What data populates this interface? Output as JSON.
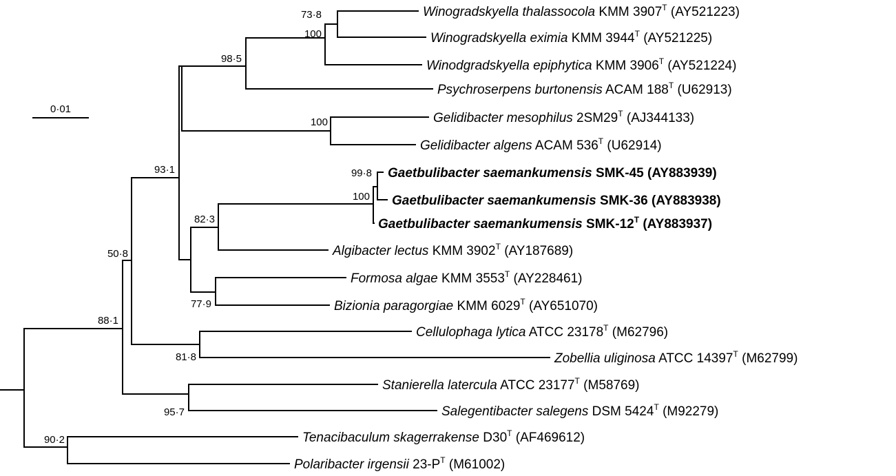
{
  "scale_bar": {
    "label": "0·01"
  },
  "taxa": [
    {
      "genus_species": "Winogradskyella thalassocola",
      "strain": "KMM 3907",
      "type_mark": "T",
      "accession": "(AY521223)",
      "bold": false
    },
    {
      "genus_species": "Winogradskyella eximia",
      "strain": "KMM 3944",
      "type_mark": "T",
      "accession": "(AY521225)",
      "bold": false
    },
    {
      "genus_species": "Winodgradskyella epiphytica",
      "strain": "KMM 3906",
      "type_mark": "T",
      "accession": "(AY521224)",
      "bold": false
    },
    {
      "genus_species": "Psychroserpens burtonensis",
      "strain": "ACAM 188",
      "type_mark": "T",
      "accession": "(U62913)",
      "bold": false
    },
    {
      "genus_species": "Gelidibacter mesophilus",
      "strain": "2SM29",
      "type_mark": "T",
      "accession": "(AJ344133)",
      "bold": false
    },
    {
      "genus_species": "Gelidibacter algens",
      "strain": "ACAM 536",
      "type_mark": "T",
      "accession": "(U62914)",
      "bold": false
    },
    {
      "genus_species": "Gaetbulibacter saemankumensis",
      "strain": "SMK-45",
      "type_mark": "",
      "accession": "(AY883939)",
      "bold": true
    },
    {
      "genus_species": "Gaetbulibacter saemankumensis",
      "strain": "SMK-36",
      "type_mark": "",
      "accession": "(AY883938)",
      "bold": true
    },
    {
      "genus_species": "Gaetbulibacter saemankumensis",
      "strain": "SMK-12",
      "type_mark": "T",
      "accession": "(AY883937)",
      "bold": true
    },
    {
      "genus_species": "Algibacter lectus",
      "strain": "KMM 3902",
      "type_mark": "T",
      "accession": "(AY187689)",
      "bold": false
    },
    {
      "genus_species": "Formosa algae",
      "strain": "KMM 3553",
      "type_mark": "T",
      "accession": "(AY228461)",
      "bold": false
    },
    {
      "genus_species": "Bizionia paragorgiae",
      "strain": "KMM 6029",
      "type_mark": "T",
      "accession": "(AY651070)",
      "bold": false
    },
    {
      "genus_species": "Cellulophaga lytica",
      "strain": "ATCC 23178",
      "type_mark": "T",
      "accession": "(M62796)",
      "bold": false
    },
    {
      "genus_species": "Zobellia uliginosa",
      "strain": "ATCC 14397",
      "type_mark": "T",
      "accession": "(M62799)",
      "bold": false
    },
    {
      "genus_species": "Stanierella latercula",
      "strain": "ATCC 23177",
      "type_mark": "T",
      "accession": "(M58769)",
      "bold": false
    },
    {
      "genus_species": "Salegentibacter salegens",
      "strain": "DSM 5424",
      "type_mark": "T",
      "accession": "(M92279)",
      "bold": false
    },
    {
      "genus_species": "Tenacibaculum skagerrakense",
      "strain": "D30",
      "type_mark": "T",
      "accession": "(AF469612)",
      "bold": false
    },
    {
      "genus_species": "Polaribacter irgensii",
      "strain": "23-P",
      "type_mark": "T",
      "accession": "(M61002)",
      "bold": false
    }
  ],
  "bootstrap": [
    "73·8",
    "100",
    "98·5",
    "100",
    "93·1",
    "99·8",
    "100",
    "82·3",
    "77·9",
    "50·8",
    "88·1",
    "81·8",
    "95·7",
    "90·2"
  ]
}
